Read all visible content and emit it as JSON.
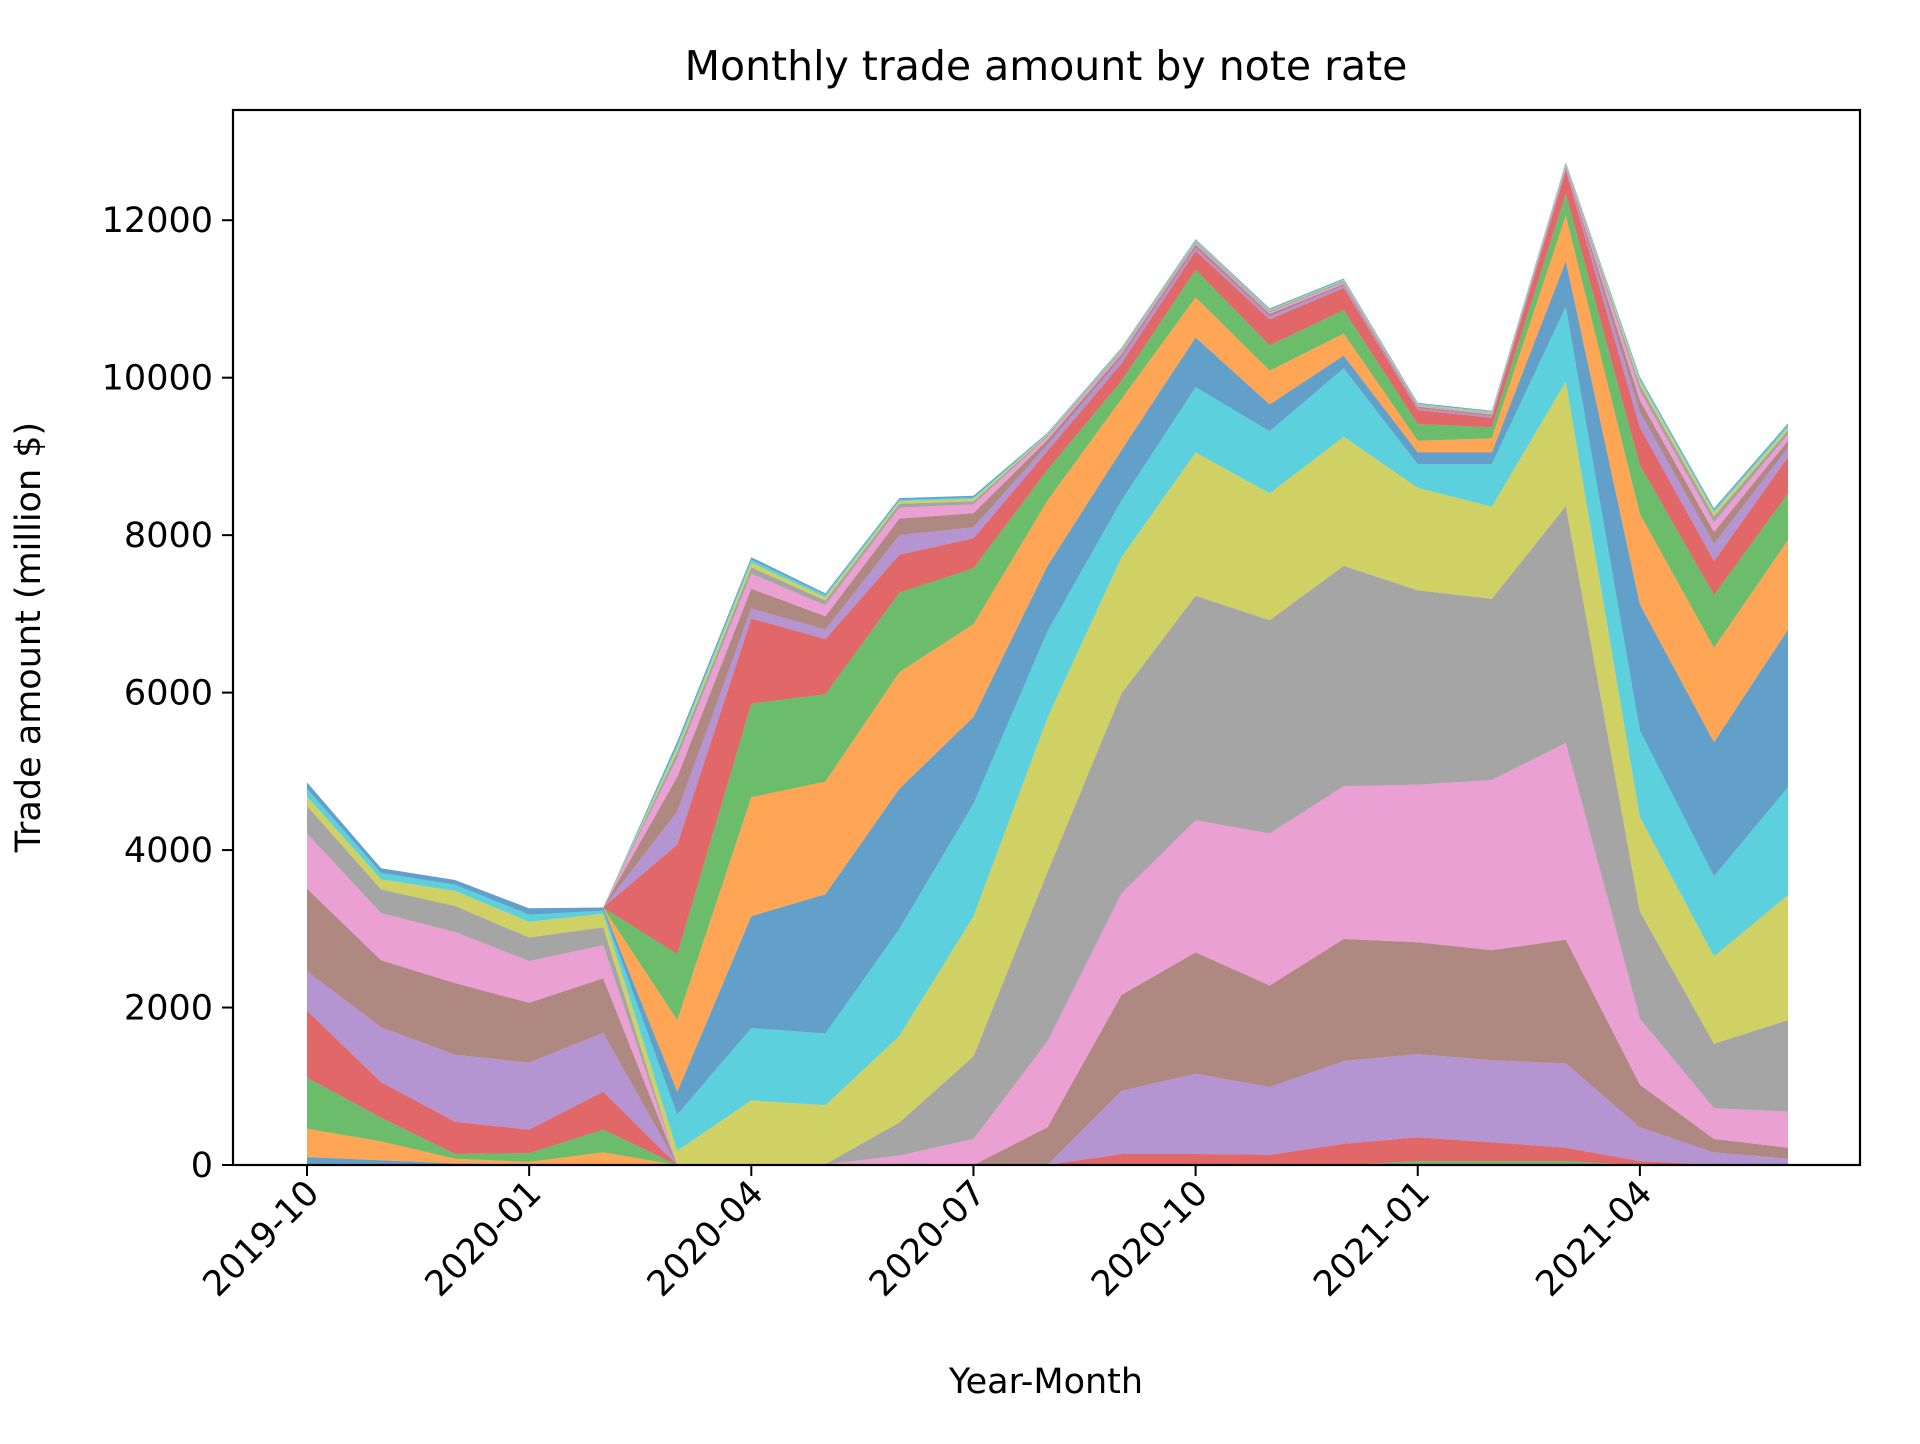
{
  "chart_data": {
    "type": "area",
    "stacked": true,
    "title": "Monthly trade amount by note rate",
    "xlabel": "Year-Month",
    "ylabel": "Trade amount (million $)",
    "ylim": [
      0,
      13400
    ],
    "yticks": [
      0,
      2000,
      4000,
      6000,
      8000,
      10000,
      12000
    ],
    "ytick_labels": [
      "0",
      "2000",
      "4000",
      "6000",
      "8000",
      "10000",
      "12000"
    ],
    "x": [
      "2019-10",
      "2019-11",
      "2019-12",
      "2020-01",
      "2020-02",
      "2020-03",
      "2020-04",
      "2020-05",
      "2020-06",
      "2020-07",
      "2020-08",
      "2020-09",
      "2020-10",
      "2020-11",
      "2020-12",
      "2021-01",
      "2021-02",
      "2021-03",
      "2021-04",
      "2021-05",
      "2021-06"
    ],
    "xticks": [
      "2019-10",
      "2020-01",
      "2020-04",
      "2020-07",
      "2020-10",
      "2021-01",
      "2021-04"
    ],
    "xtick_labels": [
      "2019-10",
      "2020-01",
      "2020-04",
      "2020-07",
      "2020-10",
      "2021-01",
      "2021-04"
    ],
    "grid": false,
    "legend": "none",
    "opacity": 0.7,
    "series": [
      {
        "color": "#1f77b4",
        "values": [
          100,
          60,
          20,
          10,
          0,
          0,
          0,
          0,
          0,
          0,
          0,
          0,
          0,
          0,
          0,
          0,
          0,
          0,
          0,
          0,
          0
        ]
      },
      {
        "color": "#ff7f0e",
        "values": [
          360,
          240,
          60,
          30,
          160,
          0,
          0,
          0,
          0,
          0,
          0,
          0,
          0,
          0,
          0,
          0,
          0,
          0,
          0,
          0,
          0
        ]
      },
      {
        "color": "#2ca02c",
        "values": [
          650,
          300,
          60,
          110,
          290,
          0,
          0,
          0,
          0,
          0,
          0,
          0,
          0,
          0,
          0,
          50,
          50,
          50,
          0,
          0,
          0
        ]
      },
      {
        "color": "#d62728",
        "values": [
          850,
          450,
          410,
          300,
          480,
          0,
          0,
          0,
          0,
          0,
          0,
          140,
          140,
          130,
          270,
          300,
          240,
          170,
          50,
          0,
          0
        ]
      },
      {
        "color": "#9467bd",
        "values": [
          500,
          700,
          850,
          850,
          750,
          0,
          0,
          0,
          0,
          0,
          0,
          800,
          1020,
          860,
          1050,
          1060,
          1040,
          1070,
          430,
          160,
          80
        ]
      },
      {
        "color": "#8c564b",
        "values": [
          1050,
          850,
          910,
          760,
          690,
          0,
          0,
          0,
          0,
          0,
          480,
          1220,
          1540,
          1290,
          1550,
          1420,
          1400,
          1570,
          540,
          170,
          140
        ]
      },
      {
        "color": "#e377c2",
        "values": [
          700,
          600,
          650,
          530,
          420,
          0,
          0,
          10,
          120,
          330,
          1090,
          1290,
          1680,
          1930,
          1940,
          2000,
          2160,
          2500,
          840,
          390,
          460
        ]
      },
      {
        "color": "#7f7f7f",
        "values": [
          350,
          300,
          330,
          300,
          230,
          0,
          0,
          0,
          420,
          1050,
          2150,
          2540,
          2850,
          2710,
          2800,
          2470,
          2300,
          3010,
          1360,
          820,
          1160
        ]
      },
      {
        "color": "#bcbd22",
        "values": [
          120,
          130,
          190,
          200,
          170,
          180,
          820,
          750,
          1100,
          1780,
          1960,
          1730,
          1820,
          1610,
          1640,
          1300,
          1170,
          1580,
          1200,
          1110,
          1590
        ]
      },
      {
        "color": "#17becf",
        "values": [
          100,
          80,
          80,
          90,
          40,
          460,
          920,
          910,
          1360,
          1430,
          1100,
          720,
          830,
          790,
          870,
          300,
          540,
          950,
          1100,
          1020,
          1370
        ]
      },
      {
        "color": "#1f77b4",
        "values": [
          80,
          60,
          60,
          80,
          40,
          290,
          1420,
          1770,
          1780,
          1100,
          830,
          640,
          630,
          340,
          160,
          150,
          150,
          580,
          1600,
          1700,
          2000
        ]
      },
      {
        "color": "#ff7f0e",
        "values": [
          0,
          0,
          0,
          0,
          0,
          910,
          1510,
          1430,
          1480,
          1180,
          830,
          650,
          510,
          430,
          280,
          150,
          180,
          580,
          1150,
          1200,
          1140
        ]
      },
      {
        "color": "#2ca02c",
        "values": [
          0,
          0,
          0,
          0,
          0,
          840,
          1190,
          1110,
          1010,
          710,
          390,
          230,
          350,
          320,
          300,
          210,
          140,
          280,
          620,
          670,
          590
        ]
      },
      {
        "color": "#d62728",
        "values": [
          0,
          0,
          0,
          0,
          0,
          1390,
          1080,
          700,
          480,
          380,
          240,
          220,
          240,
          330,
          280,
          180,
          120,
          290,
          480,
          430,
          460
        ]
      },
      {
        "color": "#9467bd",
        "values": [
          0,
          0,
          0,
          0,
          0,
          420,
          130,
          120,
          250,
          140,
          80,
          80,
          40,
          40,
          30,
          20,
          20,
          20,
          190,
          220,
          120
        ]
      },
      {
        "color": "#8c564b",
        "values": [
          0,
          0,
          0,
          0,
          0,
          440,
          250,
          170,
          210,
          180,
          60,
          40,
          40,
          30,
          20,
          20,
          20,
          20,
          150,
          150,
          90
        ]
      },
      {
        "color": "#e377c2",
        "values": [
          0,
          0,
          0,
          0,
          0,
          240,
          190,
          140,
          140,
          110,
          40,
          30,
          20,
          20,
          20,
          10,
          10,
          20,
          120,
          120,
          80
        ]
      },
      {
        "color": "#7f7f7f",
        "values": [
          0,
          0,
          0,
          0,
          0,
          80,
          80,
          60,
          50,
          40,
          20,
          20,
          20,
          20,
          20,
          10,
          10,
          20,
          80,
          80,
          50
        ]
      },
      {
        "color": "#bcbd22",
        "values": [
          0,
          0,
          0,
          0,
          0,
          50,
          60,
          40,
          30,
          30,
          10,
          10,
          10,
          10,
          10,
          10,
          10,
          10,
          50,
          50,
          40
        ]
      },
      {
        "color": "#17becf",
        "values": [
          0,
          0,
          0,
          0,
          0,
          40,
          40,
          30,
          20,
          20,
          10,
          10,
          10,
          10,
          10,
          10,
          10,
          10,
          30,
          30,
          30
        ]
      },
      {
        "color": "#1f77b4",
        "values": [
          0,
          0,
          0,
          0,
          0,
          40,
          30,
          20,
          20,
          20,
          10,
          10,
          10,
          10,
          10,
          10,
          10,
          10,
          20,
          20,
          20
        ]
      }
    ]
  }
}
